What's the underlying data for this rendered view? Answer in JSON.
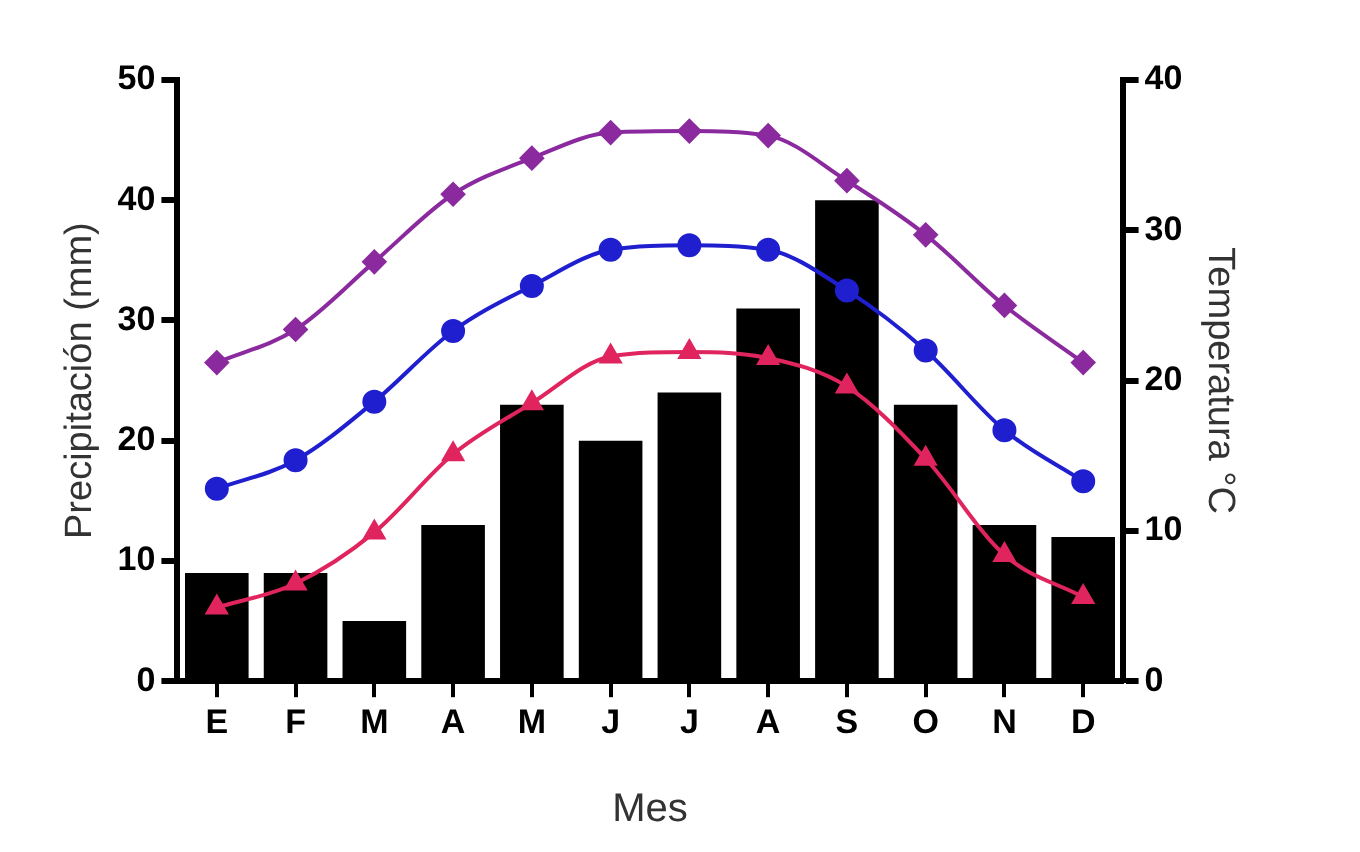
{
  "chart_data": {
    "type": "bar",
    "xlabel": "Mes",
    "ylabel": "Precipitación (mm)",
    "y2label": "Temperatura °C",
    "categories": [
      "E",
      "F",
      "M",
      "A",
      "M",
      "J",
      "J",
      "A",
      "S",
      "O",
      "N",
      "D"
    ],
    "ylim": [
      0,
      50
    ],
    "yticks": [
      0,
      10,
      20,
      30,
      40,
      50
    ],
    "y2lim": [
      0,
      40
    ],
    "y2ticks": [
      0,
      10,
      20,
      30,
      40
    ],
    "grid": false,
    "legend": false,
    "series": [
      {
        "color": "#000000",
        "values": [
          9,
          9,
          5,
          13,
          23,
          20,
          24,
          31,
          40,
          23,
          13,
          12
        ]
      },
      {
        "type": "line",
        "axis": "y2",
        "marker": "diamond",
        "color": "#8b2a9e",
        "values": [
          21.2,
          23.4,
          27.9,
          32.4,
          34.8,
          36.5,
          36.6,
          36.3,
          33.3,
          29.7,
          25,
          21.2
        ]
      },
      {
        "type": "line",
        "axis": "y2",
        "marker": "circle",
        "color": "#1f1fd0",
        "values": [
          12.8,
          14.7,
          18.6,
          23.3,
          26.3,
          28.7,
          29,
          28.7,
          26,
          22,
          16.7,
          13.3
        ]
      },
      {
        "type": "line",
        "axis": "y2",
        "marker": "triangle",
        "color": "#e0245e",
        "values": [
          4.9,
          6.5,
          9.9,
          15.1,
          18.5,
          21.6,
          21.9,
          21.5,
          19.6,
          14.8,
          8.4,
          5.6
        ]
      }
    ]
  }
}
